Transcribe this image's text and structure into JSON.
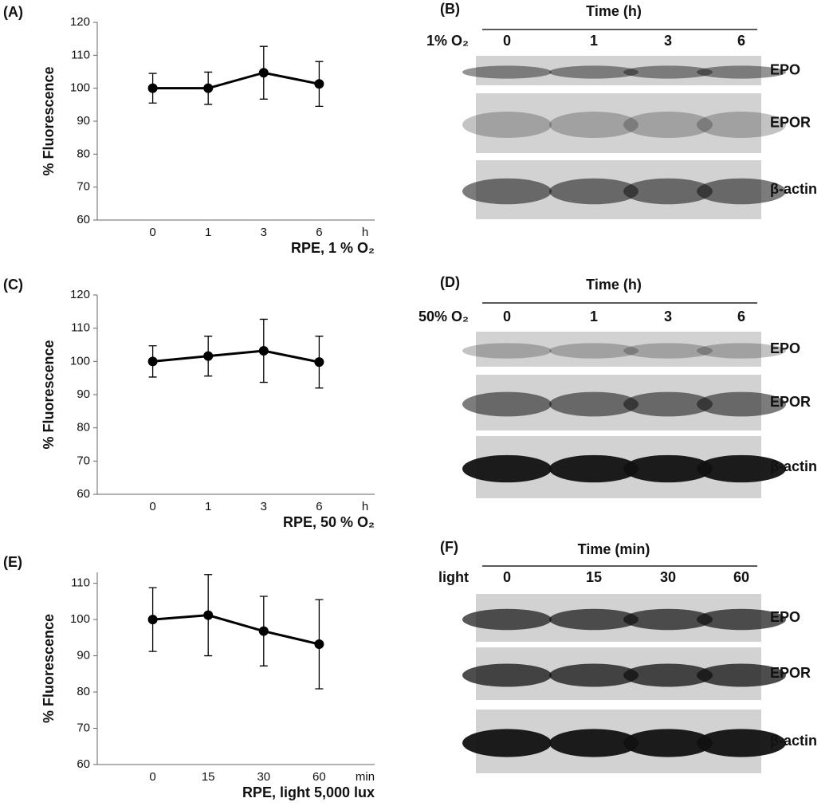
{
  "chart_data": [
    {
      "type": "line",
      "panel": "(A)",
      "y_label": "% Fluorescence",
      "x_label": "RPE, 1 % O₂",
      "x_unit": "h",
      "categories": [
        "0",
        "1",
        "3",
        "6"
      ],
      "series": [
        {
          "color": "#000000",
          "values": [
            100,
            100,
            104.7,
            101.3
          ],
          "errors": [
            4.5,
            4.9,
            8,
            6.8
          ]
        }
      ],
      "ylim": [
        60,
        120
      ],
      "yticks": [
        60,
        70,
        80,
        90,
        100,
        110,
        120
      ]
    },
    {
      "type": "line",
      "panel": "(C)",
      "y_label": "% Fluorescence",
      "x_label": "RPE, 50 % O₂",
      "x_unit": "h",
      "categories": [
        "0",
        "1",
        "3",
        "6"
      ],
      "series": [
        {
          "color": "#000000",
          "values": [
            100,
            101.6,
            103.2,
            99.8
          ],
          "errors": [
            4.7,
            6,
            9.5,
            7.8
          ]
        }
      ],
      "ylim": [
        60,
        120
      ],
      "yticks": [
        60,
        70,
        80,
        90,
        100,
        110,
        120
      ]
    },
    {
      "type": "line",
      "panel": "(E)",
      "y_label": "% Fluorescence",
      "x_label": "RPE, light 5,000 lux",
      "x_unit": "min",
      "categories": [
        "0",
        "15",
        "30",
        "60"
      ],
      "series": [
        {
          "color": "#000000",
          "values": [
            100,
            101.2,
            96.8,
            93.2
          ],
          "errors": [
            8.8,
            11.2,
            9.6,
            12.3
          ]
        }
      ],
      "ylim": [
        60,
        113
      ],
      "yticks": [
        60,
        70,
        80,
        90,
        100,
        110
      ]
    }
  ],
  "blots": [
    {
      "panel": "(B)",
      "header": "Time (h)",
      "condition": "1% O₂",
      "lanes": [
        "0",
        "1",
        "3",
        "6"
      ],
      "bands": [
        "EPO",
        "EPOR",
        "β-actin"
      ]
    },
    {
      "panel": "(D)",
      "header": "Time (h)",
      "condition": "50% O₂",
      "lanes": [
        "0",
        "1",
        "3",
        "6"
      ],
      "bands": [
        "EPO",
        "EPOR",
        "β-actin"
      ]
    },
    {
      "panel": "(F)",
      "header": "Time (min)",
      "condition": "light",
      "lanes": [
        "0",
        "15",
        "30",
        "60"
      ],
      "bands": [
        "EPO",
        "EPOR",
        "β-actin"
      ]
    }
  ]
}
